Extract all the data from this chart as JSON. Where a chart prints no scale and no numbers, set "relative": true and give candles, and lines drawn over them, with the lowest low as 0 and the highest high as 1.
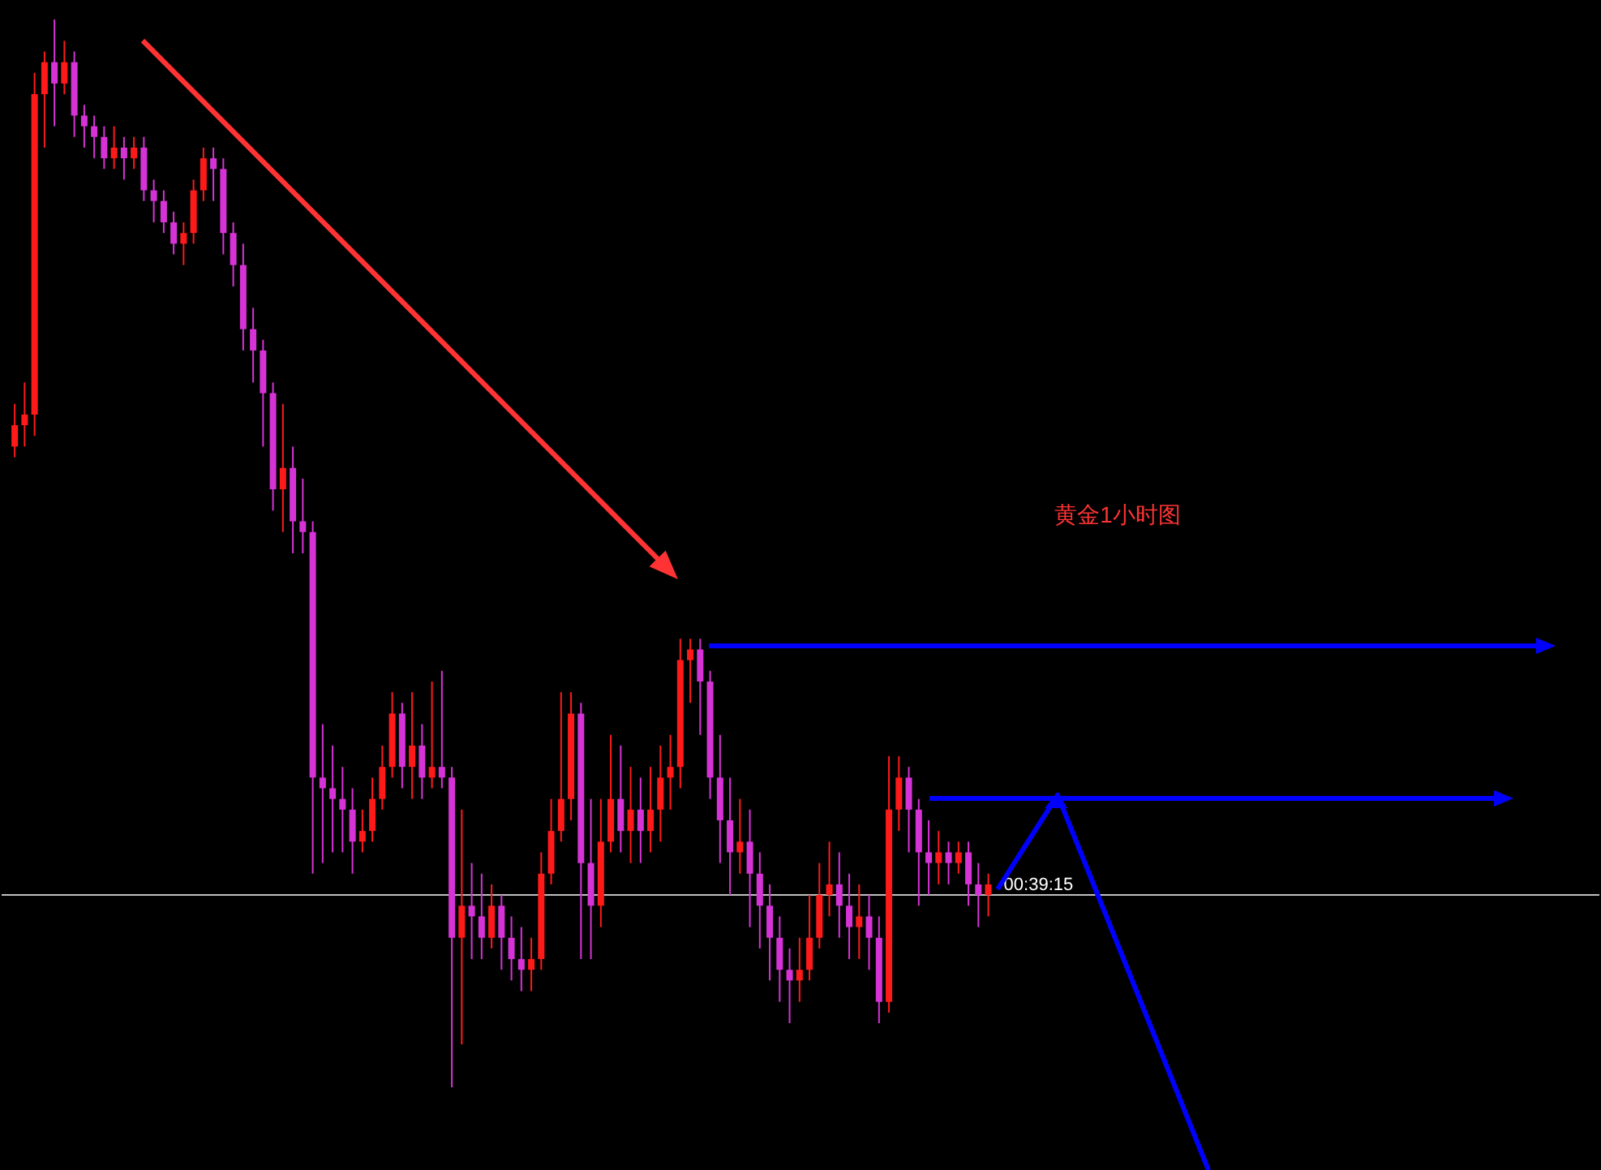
{
  "chart_data": {
    "type": "candlestick",
    "relative": true,
    "categories": [
      null,
      null,
      null,
      null,
      null,
      null,
      null,
      null,
      null,
      null,
      null,
      null,
      null,
      null,
      null,
      null,
      null,
      null,
      null,
      null,
      null,
      null,
      null,
      null,
      null,
      null,
      null,
      null,
      null,
      null,
      null,
      null,
      null,
      null,
      null,
      null,
      null,
      null,
      null,
      null,
      null,
      null,
      null,
      null,
      null,
      null,
      null,
      null,
      null,
      null,
      null,
      null,
      null,
      null,
      null,
      null,
      null,
      null,
      null,
      null,
      null,
      null,
      null,
      null,
      null,
      null,
      null,
      null,
      null,
      null,
      null,
      null,
      null,
      null,
      null,
      null,
      null,
      null,
      null,
      null,
      null,
      null,
      null,
      null,
      null,
      null,
      null,
      null,
      null,
      null,
      null,
      null,
      null,
      null,
      null,
      null,
      null,
      null,
      null
    ],
    "ohlc": [
      [
        0.6,
        0.64,
        0.59,
        0.62
      ],
      [
        0.62,
        0.66,
        0.6,
        0.63
      ],
      [
        0.63,
        0.95,
        0.61,
        0.93
      ],
      [
        0.93,
        0.97,
        0.88,
        0.96
      ],
      [
        0.96,
        1.0,
        0.9,
        0.94
      ],
      [
        0.94,
        0.98,
        0.93,
        0.96
      ],
      [
        0.96,
        0.97,
        0.89,
        0.91
      ],
      [
        0.91,
        0.92,
        0.88,
        0.9
      ],
      [
        0.9,
        0.91,
        0.87,
        0.89
      ],
      [
        0.89,
        0.9,
        0.86,
        0.87
      ],
      [
        0.87,
        0.9,
        0.86,
        0.88
      ],
      [
        0.88,
        0.89,
        0.85,
        0.87
      ],
      [
        0.87,
        0.89,
        0.86,
        0.88
      ],
      [
        0.88,
        0.89,
        0.83,
        0.84
      ],
      [
        0.84,
        0.85,
        0.81,
        0.83
      ],
      [
        0.83,
        0.84,
        0.8,
        0.81
      ],
      [
        0.81,
        0.82,
        0.78,
        0.79
      ],
      [
        0.79,
        0.81,
        0.77,
        0.8
      ],
      [
        0.8,
        0.85,
        0.79,
        0.84
      ],
      [
        0.84,
        0.88,
        0.83,
        0.87
      ],
      [
        0.87,
        0.88,
        0.83,
        0.86
      ],
      [
        0.86,
        0.87,
        0.78,
        0.8
      ],
      [
        0.8,
        0.81,
        0.75,
        0.77
      ],
      [
        0.77,
        0.79,
        0.69,
        0.71
      ],
      [
        0.71,
        0.73,
        0.66,
        0.69
      ],
      [
        0.69,
        0.7,
        0.6,
        0.65
      ],
      [
        0.65,
        0.66,
        0.54,
        0.56
      ],
      [
        0.56,
        0.64,
        0.52,
        0.58
      ],
      [
        0.58,
        0.6,
        0.5,
        0.53
      ],
      [
        0.53,
        0.57,
        0.5,
        0.52
      ],
      [
        0.52,
        0.53,
        0.2,
        0.29
      ],
      [
        0.29,
        0.34,
        0.21,
        0.28
      ],
      [
        0.28,
        0.32,
        0.22,
        0.27
      ],
      [
        0.27,
        0.3,
        0.22,
        0.26
      ],
      [
        0.26,
        0.28,
        0.2,
        0.23
      ],
      [
        0.23,
        0.26,
        0.22,
        0.24
      ],
      [
        0.24,
        0.29,
        0.23,
        0.27
      ],
      [
        0.27,
        0.32,
        0.26,
        0.3
      ],
      [
        0.3,
        0.37,
        0.29,
        0.35
      ],
      [
        0.35,
        0.36,
        0.28,
        0.3
      ],
      [
        0.3,
        0.37,
        0.27,
        0.32
      ],
      [
        0.32,
        0.34,
        0.27,
        0.29
      ],
      [
        0.29,
        0.38,
        0.28,
        0.3
      ],
      [
        0.3,
        0.39,
        0.28,
        0.29
      ],
      [
        0.29,
        0.3,
        0.0,
        0.14
      ],
      [
        0.14,
        0.26,
        0.04,
        0.17
      ],
      [
        0.17,
        0.21,
        0.12,
        0.16
      ],
      [
        0.16,
        0.2,
        0.12,
        0.14
      ],
      [
        0.14,
        0.19,
        0.13,
        0.17
      ],
      [
        0.17,
        0.18,
        0.11,
        0.14
      ],
      [
        0.14,
        0.16,
        0.1,
        0.12
      ],
      [
        0.12,
        0.15,
        0.09,
        0.11
      ],
      [
        0.11,
        0.14,
        0.09,
        0.12
      ],
      [
        0.12,
        0.22,
        0.11,
        0.2
      ],
      [
        0.2,
        0.27,
        0.19,
        0.24
      ],
      [
        0.24,
        0.37,
        0.23,
        0.27
      ],
      [
        0.27,
        0.37,
        0.25,
        0.35
      ],
      [
        0.35,
        0.36,
        0.12,
        0.21
      ],
      [
        0.21,
        0.27,
        0.12,
        0.17
      ],
      [
        0.17,
        0.27,
        0.15,
        0.23
      ],
      [
        0.23,
        0.33,
        0.22,
        0.27
      ],
      [
        0.27,
        0.32,
        0.22,
        0.24
      ],
      [
        0.24,
        0.3,
        0.21,
        0.26
      ],
      [
        0.26,
        0.29,
        0.21,
        0.24
      ],
      [
        0.24,
        0.3,
        0.22,
        0.26
      ],
      [
        0.26,
        0.32,
        0.23,
        0.29
      ],
      [
        0.29,
        0.33,
        0.26,
        0.3
      ],
      [
        0.3,
        0.42,
        0.28,
        0.4
      ],
      [
        0.4,
        0.42,
        0.36,
        0.41
      ],
      [
        0.41,
        0.42,
        0.33,
        0.38
      ],
      [
        0.38,
        0.39,
        0.27,
        0.29
      ],
      [
        0.29,
        0.33,
        0.21,
        0.25
      ],
      [
        0.25,
        0.29,
        0.18,
        0.22
      ],
      [
        0.22,
        0.27,
        0.2,
        0.23
      ],
      [
        0.23,
        0.26,
        0.15,
        0.2
      ],
      [
        0.2,
        0.22,
        0.13,
        0.17
      ],
      [
        0.17,
        0.19,
        0.1,
        0.14
      ],
      [
        0.14,
        0.16,
        0.08,
        0.11
      ],
      [
        0.11,
        0.13,
        0.06,
        0.1
      ],
      [
        0.1,
        0.14,
        0.08,
        0.11
      ],
      [
        0.11,
        0.18,
        0.1,
        0.14
      ],
      [
        0.14,
        0.21,
        0.13,
        0.18
      ],
      [
        0.18,
        0.23,
        0.16,
        0.19
      ],
      [
        0.19,
        0.22,
        0.14,
        0.17
      ],
      [
        0.17,
        0.2,
        0.12,
        0.15
      ],
      [
        0.15,
        0.19,
        0.12,
        0.16
      ],
      [
        0.16,
        0.18,
        0.11,
        0.14
      ],
      [
        0.14,
        0.16,
        0.06,
        0.08
      ],
      [
        0.08,
        0.31,
        0.07,
        0.26
      ],
      [
        0.26,
        0.31,
        0.24,
        0.29
      ],
      [
        0.29,
        0.3,
        0.22,
        0.26
      ],
      [
        0.26,
        0.27,
        0.17,
        0.22
      ],
      [
        0.22,
        0.25,
        0.18,
        0.21
      ],
      [
        0.21,
        0.24,
        0.19,
        0.22
      ],
      [
        0.22,
        0.23,
        0.19,
        0.21
      ],
      [
        0.21,
        0.23,
        0.2,
        0.22
      ],
      [
        0.22,
        0.23,
        0.17,
        0.19
      ],
      [
        0.19,
        0.21,
        0.15,
        0.18
      ],
      [
        0.18,
        0.2,
        0.16,
        0.19
      ]
    ],
    "colors": [
      "#ff1a1a",
      "#ff1a1a",
      "#ff1a1a",
      "#ff1a1a",
      "#d633d6",
      "#ff1a1a",
      "#d633d6",
      "#d633d6",
      "#d633d6",
      "#d633d6",
      "#ff1a1a",
      "#d633d6",
      "#ff1a1a",
      "#d633d6",
      "#d633d6",
      "#d633d6",
      "#d633d6",
      "#ff1a1a",
      "#ff1a1a",
      "#ff1a1a",
      "#d633d6",
      "#d633d6",
      "#d633d6",
      "#d633d6",
      "#d633d6",
      "#d633d6",
      "#d633d6",
      "#ff1a1a",
      "#d633d6",
      "#d633d6",
      "#d633d6",
      "#d633d6",
      "#d633d6",
      "#d633d6",
      "#d633d6",
      "#ff1a1a",
      "#ff1a1a",
      "#ff1a1a",
      "#ff1a1a",
      "#d633d6",
      "#ff1a1a",
      "#d633d6",
      "#ff1a1a",
      "#d633d6",
      "#d633d6",
      "#ff1a1a",
      "#d633d6",
      "#d633d6",
      "#ff1a1a",
      "#d633d6",
      "#d633d6",
      "#d633d6",
      "#ff1a1a",
      "#ff1a1a",
      "#ff1a1a",
      "#ff1a1a",
      "#ff1a1a",
      "#d633d6",
      "#d633d6",
      "#ff1a1a",
      "#ff1a1a",
      "#d633d6",
      "#ff1a1a",
      "#d633d6",
      "#ff1a1a",
      "#ff1a1a",
      "#ff1a1a",
      "#ff1a1a",
      "#ff1a1a",
      "#d633d6",
      "#d633d6",
      "#d633d6",
      "#d633d6",
      "#ff1a1a",
      "#d633d6",
      "#d633d6",
      "#d633d6",
      "#d633d6",
      "#d633d6",
      "#ff1a1a",
      "#ff1a1a",
      "#ff1a1a",
      "#ff1a1a",
      "#d633d6",
      "#d633d6",
      "#ff1a1a",
      "#d633d6",
      "#d633d6",
      "#ff1a1a",
      "#ff1a1a",
      "#d633d6",
      "#d633d6",
      "#d633d6",
      "#ff1a1a",
      "#d633d6",
      "#ff1a1a",
      "#d633d6",
      "#d633d6",
      "#ff1a1a"
    ],
    "ref_lines": [
      {
        "axis": "y",
        "value": 0.18,
        "label": "00:39:15",
        "color": "#c0c0c0"
      }
    ],
    "annotations": [
      "黄金1小时图"
    ]
  }
}
